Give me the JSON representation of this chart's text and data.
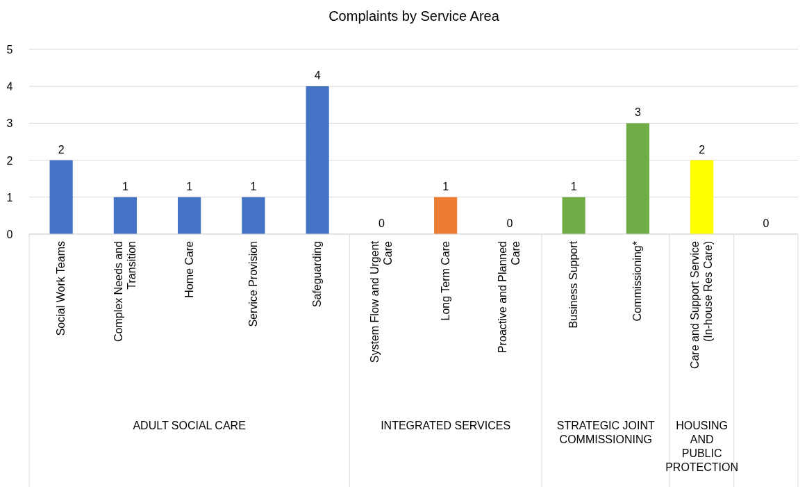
{
  "chart_data": {
    "type": "bar",
    "title": "Complaints by Service Area",
    "categories": [
      "Social Work Teams",
      "Complex Needs and Transition",
      "Home Care",
      "Service Provision",
      "Safeguarding",
      "System Flow and Urgent Care",
      "Long Term Care",
      "Proactive and Planned Care",
      "Business Support",
      "Commissioning*",
      "Care and Support Service (In-house Res Care)",
      null
    ],
    "values": [
      2,
      1,
      1,
      1,
      4,
      0,
      1,
      0,
      1,
      3,
      2,
      0
    ],
    "colors": [
      "#4472c4",
      "#4472c4",
      "#4472c4",
      "#4472c4",
      "#4472c4",
      "#4472c4",
      "#ed7d31",
      "#ed7d31",
      "#70ad47",
      "#70ad47",
      "#ffff00",
      "#4472c4"
    ],
    "ylim": [
      0,
      5
    ],
    "yticks": [
      0,
      1,
      2,
      3,
      4,
      5
    ],
    "grid": "y",
    "data_labels": true,
    "annotations": [
      "ADULT SOCIAL CARE",
      "INTEGRATED SERVICES",
      "STRATEGIC JOINT COMMISSIONING",
      "HOUSING AND PUBLIC PROTECTION"
    ]
  }
}
